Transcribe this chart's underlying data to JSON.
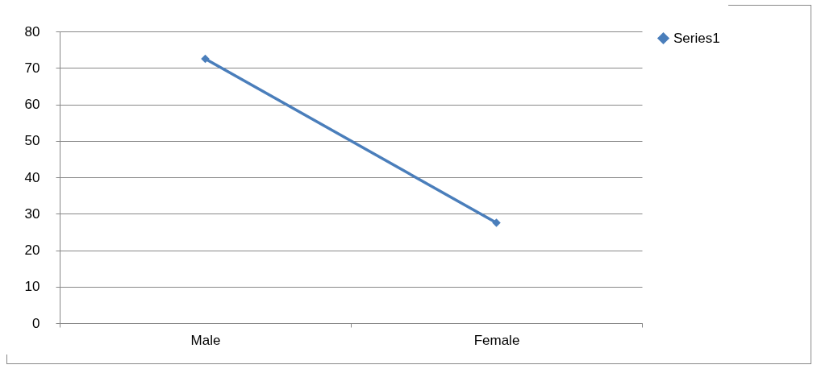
{
  "chart_data": {
    "type": "line",
    "categories": [
      "Male",
      "Female"
    ],
    "series": [
      {
        "name": "Series1",
        "color": "#4a7ebb",
        "values": [
          72.5,
          27.5
        ]
      }
    ],
    "ylim": [
      0,
      80
    ],
    "yticks": [
      0,
      10,
      20,
      30,
      40,
      50,
      60,
      70,
      80
    ],
    "grid": "y",
    "legend": "right",
    "marker": "diamond",
    "line_style": "solid"
  }
}
